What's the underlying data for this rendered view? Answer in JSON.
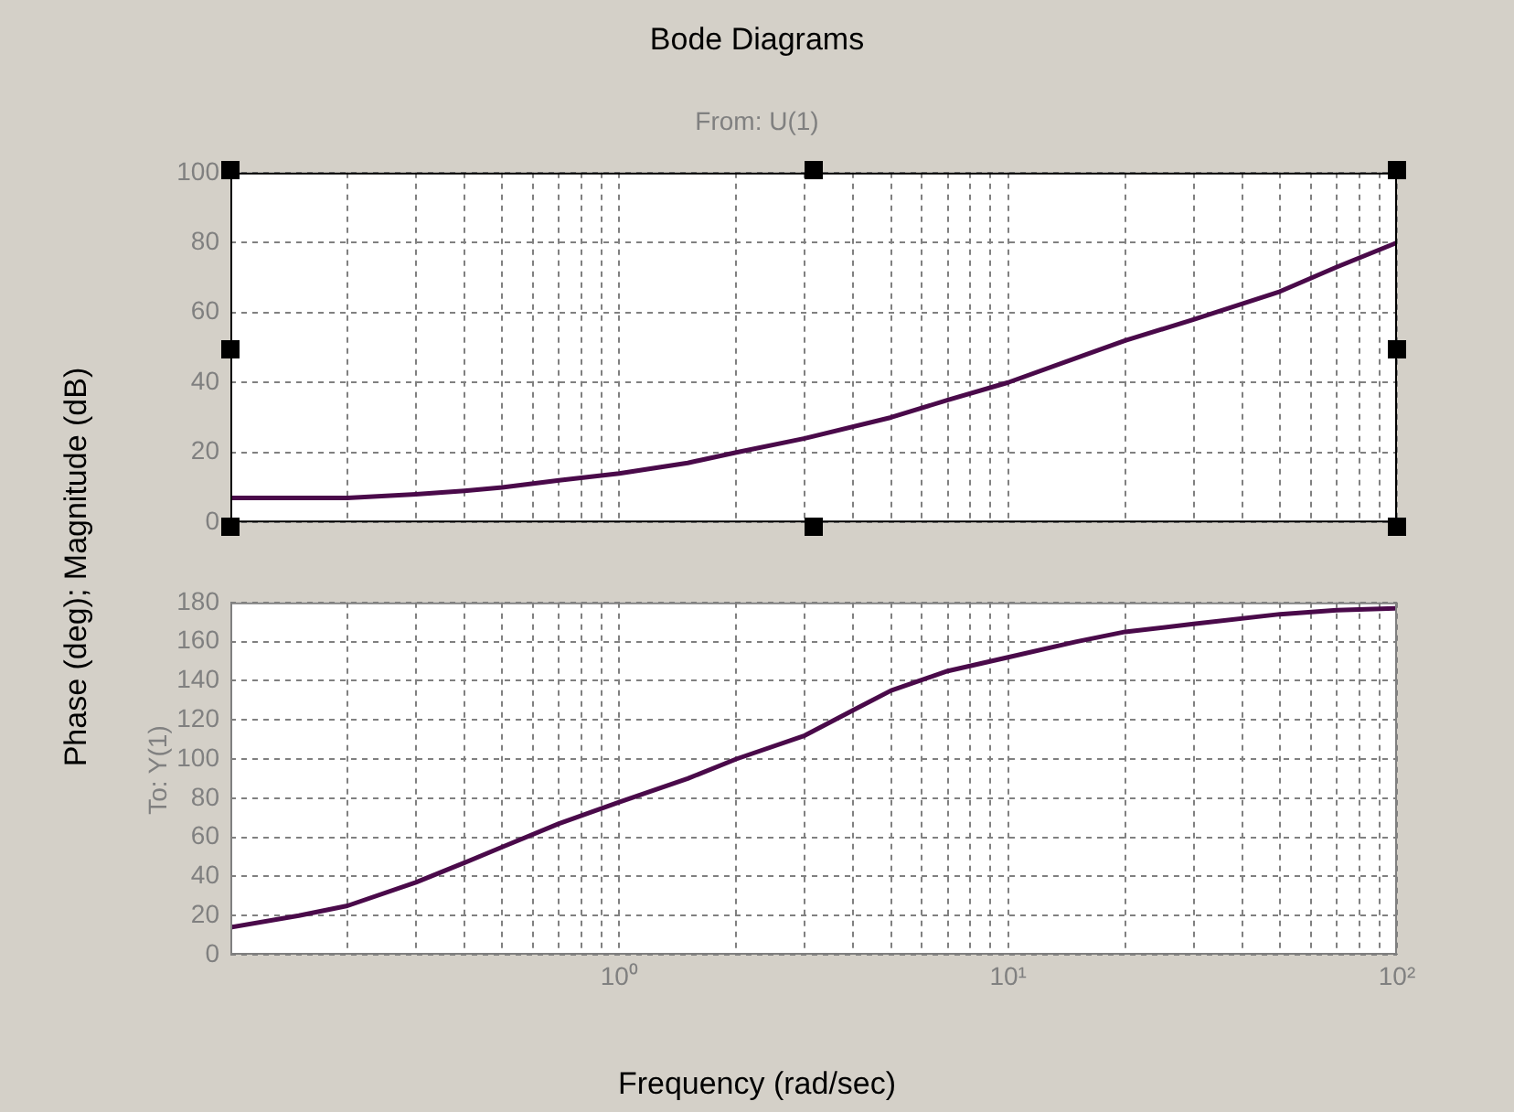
{
  "chart_data": [
    {
      "type": "line",
      "title": "Bode Diagrams",
      "subtitle": "From: U(1)",
      "ylabel": "Phase (deg); Magnitude (dB)",
      "x": [
        0.1,
        0.15,
        0.2,
        0.3,
        0.4,
        0.5,
        0.7,
        1,
        1.5,
        2,
        3,
        5,
        7,
        10,
        15,
        20,
        30,
        50,
        70,
        100
      ],
      "series": [
        {
          "color": "#4a0a4a",
          "values": [
            7,
            7,
            7,
            8,
            9,
            10,
            12,
            14,
            17,
            20,
            24,
            30,
            35,
            40,
            47,
            52,
            58,
            66,
            73,
            80
          ]
        }
      ],
      "xlim": [
        0.1,
        100
      ],
      "ylim": [
        0,
        100
      ],
      "xticks": [
        {
          "value": 0.2,
          "label": null
        },
        {
          "value": 0.3,
          "label": null
        },
        {
          "value": 0.4,
          "label": null
        },
        {
          "value": 0.5,
          "label": null
        },
        {
          "value": 0.6,
          "label": null
        },
        {
          "value": 0.7,
          "label": null
        },
        {
          "value": 0.8,
          "label": null
        },
        {
          "value": 0.9,
          "label": null
        },
        {
          "value": 1,
          "label": null
        },
        {
          "value": 2,
          "label": null
        },
        {
          "value": 3,
          "label": null
        },
        {
          "value": 4,
          "label": null
        },
        {
          "value": 5,
          "label": null
        },
        {
          "value": 6,
          "label": null
        },
        {
          "value": 7,
          "label": null
        },
        {
          "value": 8,
          "label": null
        },
        {
          "value": 9,
          "label": null
        },
        {
          "value": 10,
          "label": null
        },
        {
          "value": 20,
          "label": null
        },
        {
          "value": 30,
          "label": null
        },
        {
          "value": 40,
          "label": null
        },
        {
          "value": 50,
          "label": null
        },
        {
          "value": 60,
          "label": null
        },
        {
          "value": 70,
          "label": null
        },
        {
          "value": 80,
          "label": null
        },
        {
          "value": 90,
          "label": null
        },
        {
          "value": 100,
          "label": null
        }
      ],
      "yticks": [
        0,
        20,
        40,
        60,
        80,
        100
      ],
      "grid": true,
      "log": "x",
      "tick_labels": "y"
    },
    {
      "type": "line",
      "ylabel": "To: Y(1)",
      "xlabel": "Frequency (rad/sec)",
      "x": [
        0.1,
        0.15,
        0.2,
        0.3,
        0.4,
        0.5,
        0.7,
        1,
        1.5,
        2,
        3,
        4,
        5,
        7,
        10,
        15,
        20,
        30,
        50,
        70,
        100
      ],
      "series": [
        {
          "color": "#4a0a4a",
          "values": [
            14,
            20,
            25,
            37,
            47,
            55,
            67,
            78,
            90,
            100,
            112,
            125,
            135,
            145,
            152,
            160,
            165,
            169,
            174,
            176,
            177
          ]
        }
      ],
      "xlim": [
        0.1,
        100
      ],
      "ylim": [
        0,
        180
      ],
      "xticks": [
        {
          "value": 0.2,
          "label": null
        },
        {
          "value": 0.3,
          "label": null
        },
        {
          "value": 0.4,
          "label": null
        },
        {
          "value": 0.5,
          "label": null
        },
        {
          "value": 0.6,
          "label": null
        },
        {
          "value": 0.7,
          "label": null
        },
        {
          "value": 0.8,
          "label": null
        },
        {
          "value": 0.9,
          "label": null
        },
        {
          "value": 1,
          "label": "10⁰"
        },
        {
          "value": 2,
          "label": null
        },
        {
          "value": 3,
          "label": null
        },
        {
          "value": 4,
          "label": null
        },
        {
          "value": 5,
          "label": null
        },
        {
          "value": 6,
          "label": null
        },
        {
          "value": 7,
          "label": null
        },
        {
          "value": 8,
          "label": null
        },
        {
          "value": 9,
          "label": null
        },
        {
          "value": 10,
          "label": "10¹"
        },
        {
          "value": 20,
          "label": null
        },
        {
          "value": 30,
          "label": null
        },
        {
          "value": 40,
          "label": null
        },
        {
          "value": 50,
          "label": null
        },
        {
          "value": 60,
          "label": null
        },
        {
          "value": 70,
          "label": null
        },
        {
          "value": 80,
          "label": null
        },
        {
          "value": 90,
          "label": null
        },
        {
          "value": 100,
          "label": "10²"
        }
      ],
      "yticks": [
        0,
        20,
        40,
        60,
        80,
        100,
        120,
        140,
        160,
        180
      ],
      "grid": true,
      "log": "x"
    }
  ]
}
